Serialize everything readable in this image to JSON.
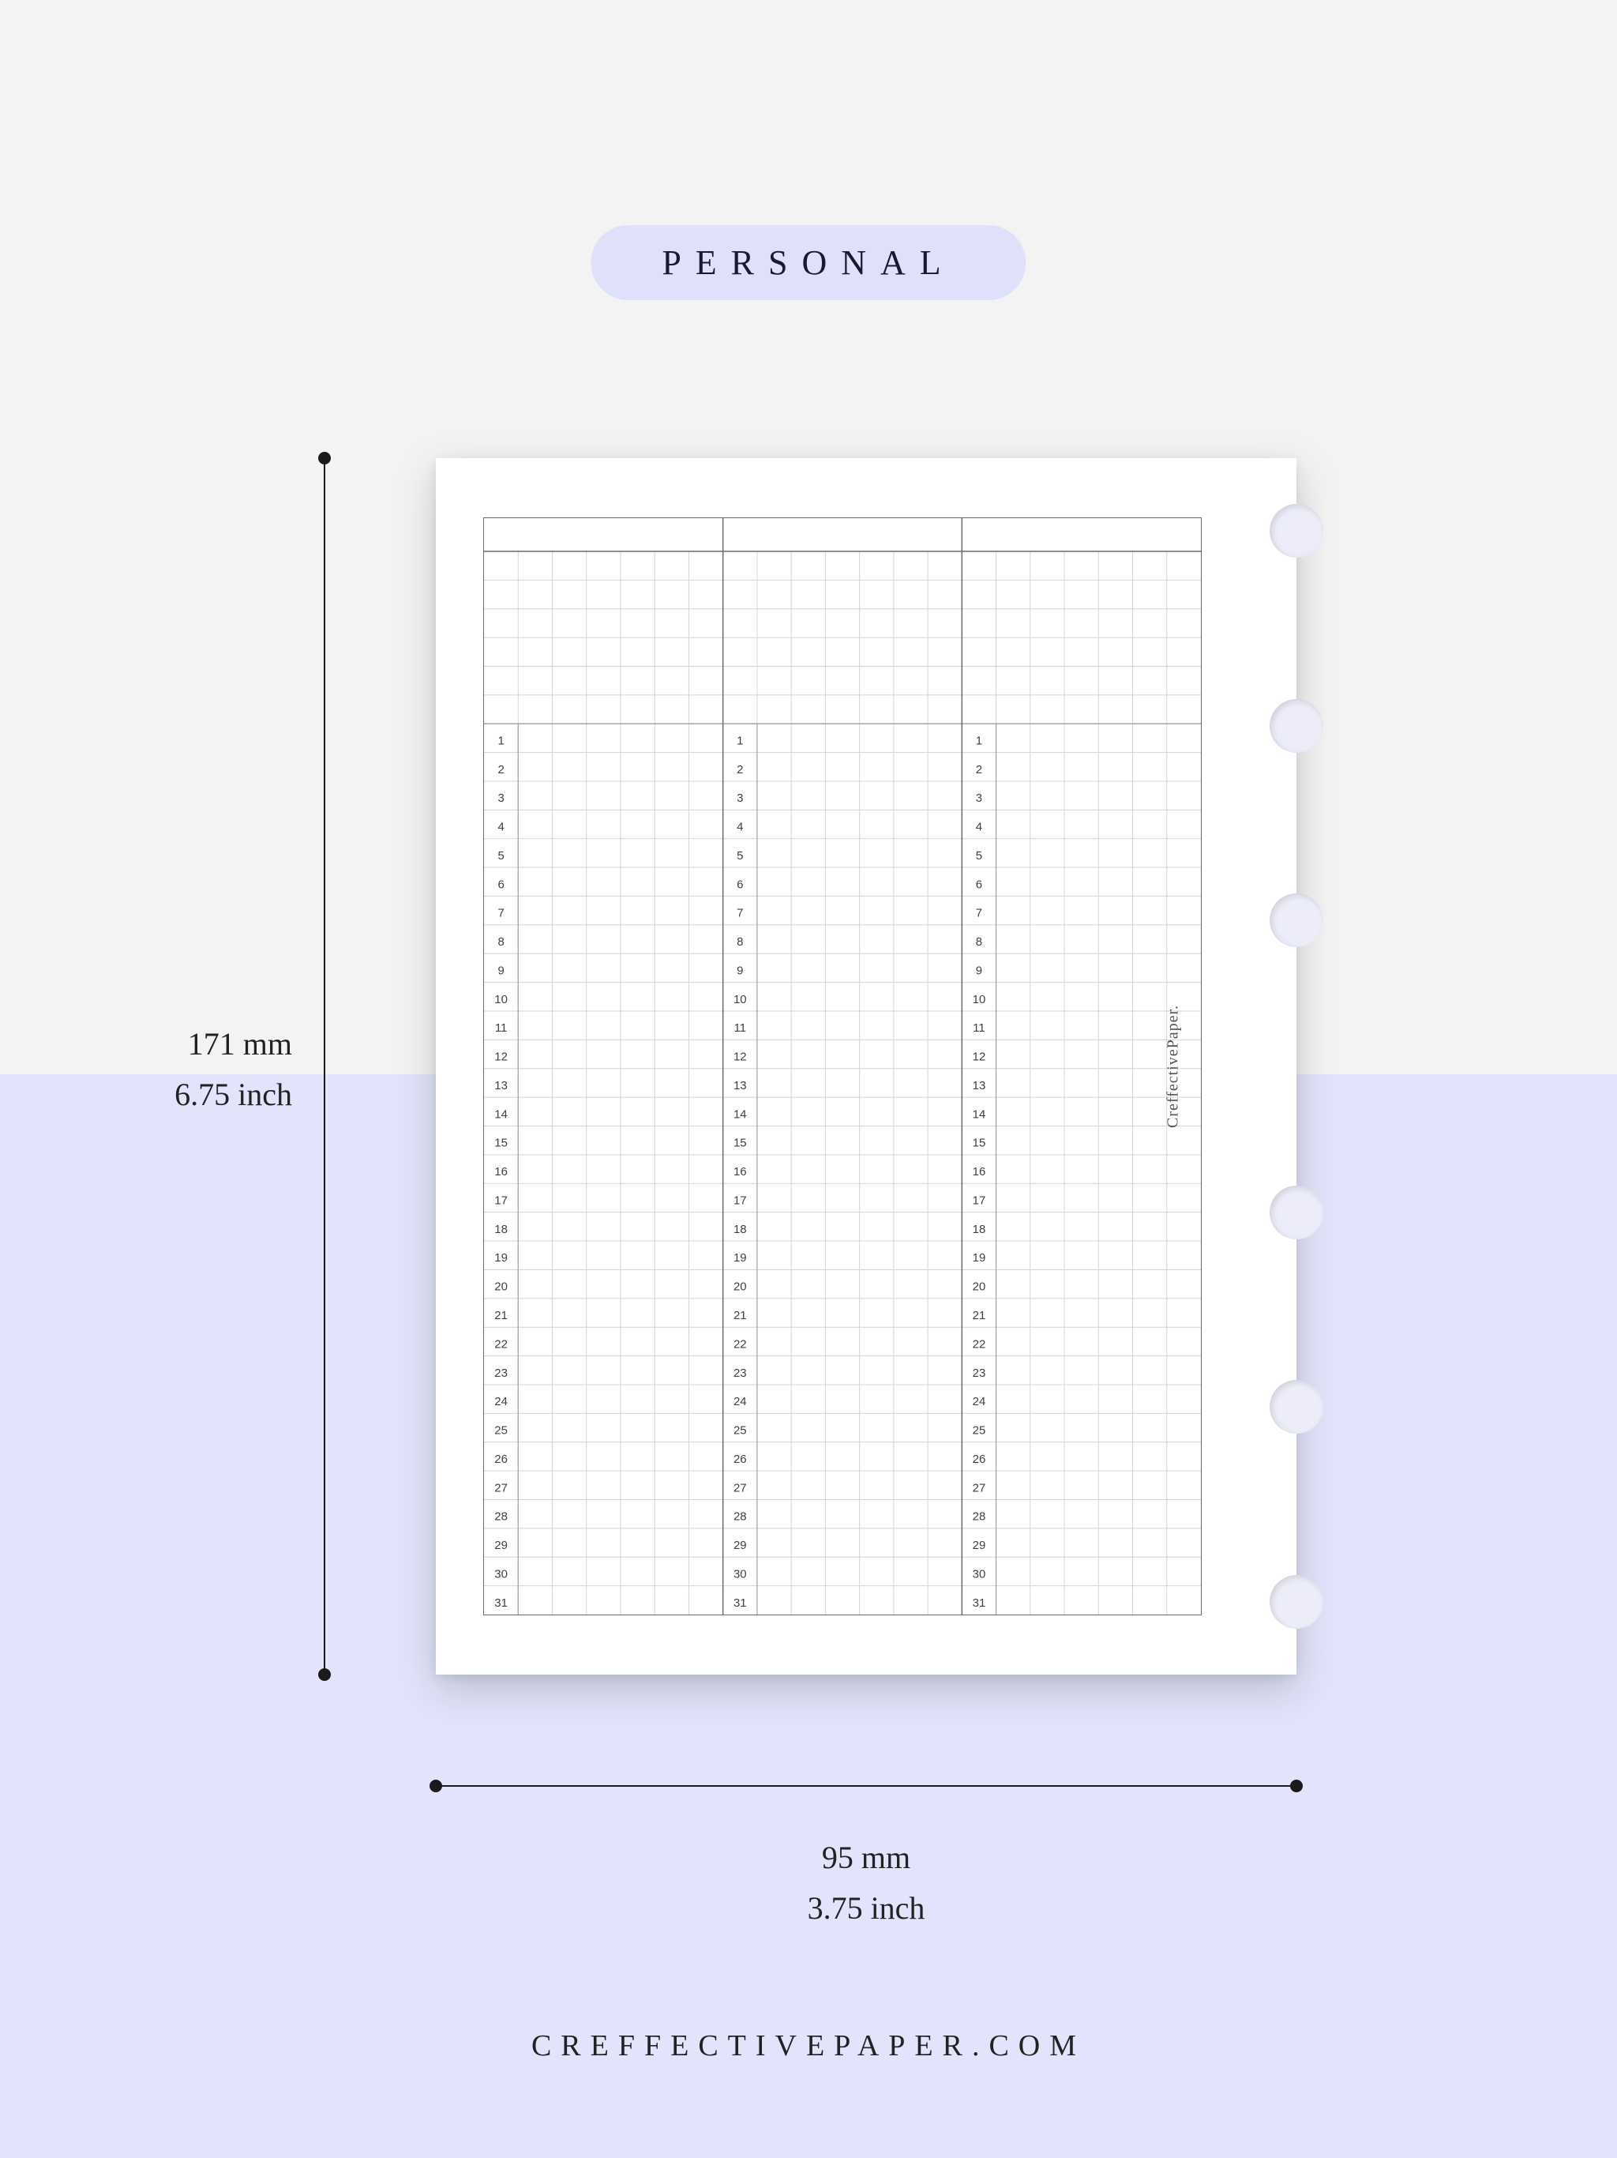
{
  "colors": {
    "bg_top": "#f3f3f3",
    "bg_bottom": "#e2e4fb",
    "badge_bg": "#dfe1fa",
    "badge_text": "#1a1a2e",
    "page_bg": "#ffffff",
    "grid_outer": "#6a6a6a",
    "grid_major": "#9a9a9a",
    "grid_minor": "#d4d4d4",
    "dim_line": "#1a1a1a",
    "label_text": "#222222",
    "hole_fill": "#ecedf8",
    "hole_shadow": "rgba(0,0,0,0.12)"
  },
  "badge": {
    "label": "PERSONAL"
  },
  "dimensions": {
    "height_mm": "171 mm",
    "height_in": "6.75 inch",
    "width_mm": "95 mm",
    "width_in": "3.75 inch"
  },
  "page": {
    "watermark": "CreffectivePaper.",
    "columns": 3,
    "sub_columns_per_column": 7,
    "header_rows": 6,
    "numbered_rows": 31,
    "row_numbers": [
      1,
      2,
      3,
      4,
      5,
      6,
      7,
      8,
      9,
      10,
      11,
      12,
      13,
      14,
      15,
      16,
      17,
      18,
      19,
      20,
      21,
      22,
      23,
      24,
      25,
      26,
      27,
      28,
      29,
      30,
      31
    ],
    "hole_positions_pct": [
      6,
      22,
      38,
      62,
      78,
      94
    ]
  },
  "footer": {
    "brand": "CREFFECTIVEPAPER.COM"
  }
}
